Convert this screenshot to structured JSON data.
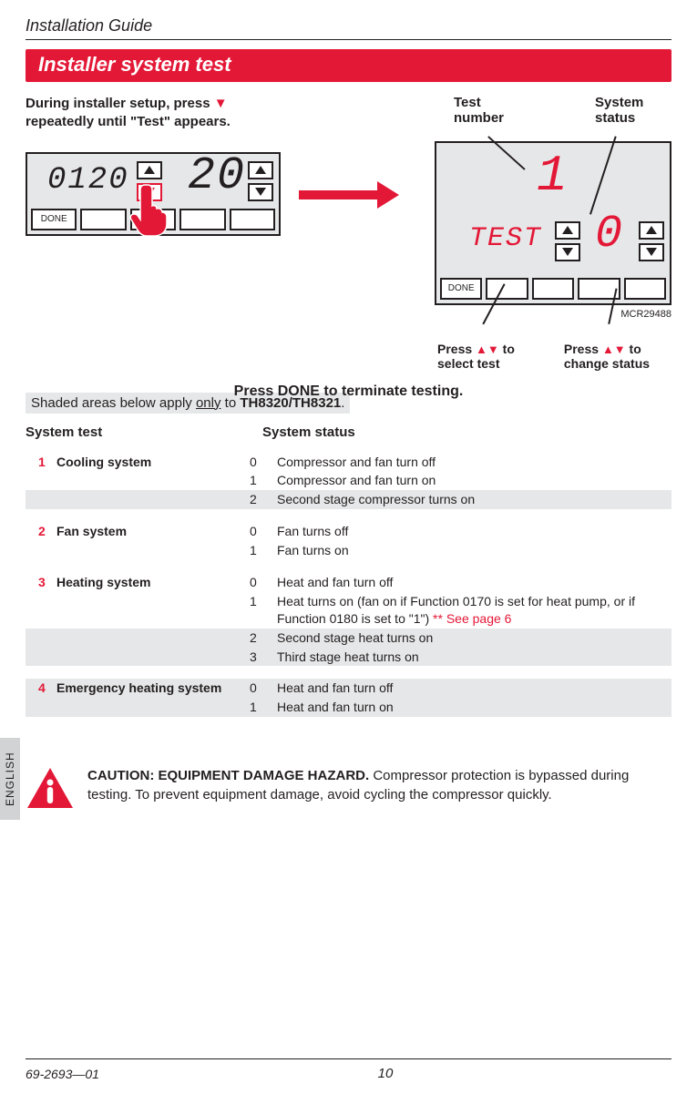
{
  "header": {
    "title": "Installation Guide"
  },
  "section_bar": "Installer system test",
  "instructions": {
    "left_line1": "During installer setup, press",
    "left_line2": "repeatedly until \"Test\" appears.",
    "test_number_label": "Test\nnumber",
    "system_status_label": "System\nstatus"
  },
  "lcd_left": {
    "small_digits": "0120",
    "big_digits": "20",
    "done": "DONE"
  },
  "lcd_right": {
    "top_digit": "1",
    "test_label": "TEST",
    "right_digit": "0",
    "done": "DONE",
    "mcr": "MCR29488"
  },
  "press": {
    "select_prefix": "Press ",
    "select_suffix": " to\nselect test",
    "change_prefix": "Press ",
    "change_suffix": " to\nchange status",
    "done_line_prefix": "Press ",
    "done_word": "DONE",
    "done_line_suffix": " to terminate testing."
  },
  "shaded_note": {
    "prefix": "Shaded areas below apply ",
    "only": "only",
    "mid": " to ",
    "models": "TH8320/TH8321",
    "suffix": "."
  },
  "table": {
    "col1": "System test",
    "col2": "System status",
    "rows": [
      {
        "num": "1",
        "name": "Cooling system",
        "shaded_block": false,
        "statuses": [
          {
            "code": "0",
            "desc": "Compressor and fan turn off",
            "shaded": false
          },
          {
            "code": "1",
            "desc": "Compressor and fan turn on",
            "shaded": false
          },
          {
            "code": "2",
            "desc": "Second stage compressor turns on",
            "shaded": true
          }
        ]
      },
      {
        "num": "2",
        "name": "Fan system",
        "shaded_block": false,
        "statuses": [
          {
            "code": "0",
            "desc": "Fan turns off",
            "shaded": false
          },
          {
            "code": "1",
            "desc": "Fan turns on",
            "shaded": false
          }
        ]
      },
      {
        "num": "3",
        "name": "Heating system",
        "shaded_block": false,
        "statuses": [
          {
            "code": "0",
            "desc": "Heat and fan turn off",
            "shaded": false
          },
          {
            "code": "1",
            "desc": "Heat turns on (fan on if Function 0170 is set for heat pump, or if Function 0180 is set to \"1\")  ",
            "ref": "** See page 6",
            "shaded": false
          },
          {
            "code": "2",
            "desc": "Second stage heat turns on",
            "shaded": true
          },
          {
            "code": "3",
            "desc": "Third stage heat turns on",
            "shaded": true
          }
        ]
      },
      {
        "num": "4",
        "name": "Emergency heating system",
        "shaded_block": true,
        "statuses": [
          {
            "code": "0",
            "desc": "Heat and fan turn off",
            "shaded": true
          },
          {
            "code": "1",
            "desc": "Heat and fan turn on",
            "shaded": true
          }
        ]
      }
    ]
  },
  "caution": {
    "lead": "CAUTION: EQUIPMENT DAMAGE HAZARD.",
    "body": " Compressor protection is bypassed during testing. To prevent equipment damage, avoid cycling the compressor quickly."
  },
  "side_tab": "ENGLISH",
  "footer": {
    "docnum": "69-2693—01",
    "page": "10"
  },
  "colors": {
    "red": "#e31837",
    "gray_bg": "#e6e7e8",
    "text": "#231f20",
    "side_tab": "#d1d3d4"
  }
}
